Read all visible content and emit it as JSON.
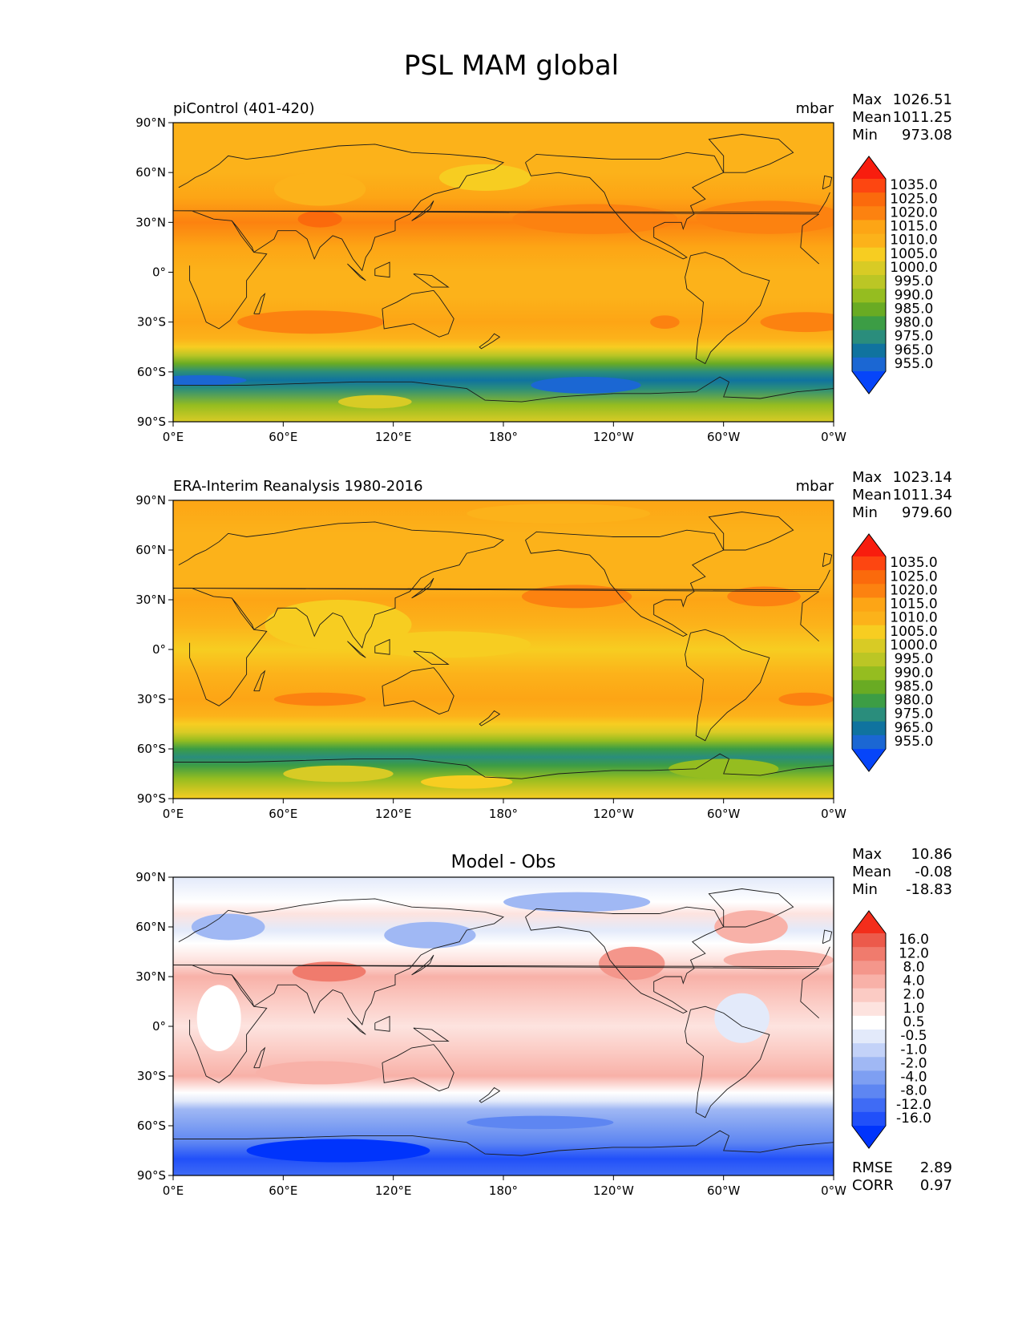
{
  "figure": {
    "title": "PSL MAM global"
  },
  "colors": {
    "abs": [
      "#0645f9",
      "#1b67d3",
      "#10739f",
      "#2a8d7c",
      "#3c9d45",
      "#69ab23",
      "#95bd20",
      "#bbc625",
      "#d8cb25",
      "#f7cd21",
      "#fcb21a",
      "#fda515",
      "#fc8210",
      "#fb6a0c",
      "#fd4611",
      "#f81d0e"
    ],
    "diff": [
      "#0034fc",
      "#2150f9",
      "#3f6bf5",
      "#5e86f2",
      "#7e9ff2",
      "#a0b8f4",
      "#c3d2f8",
      "#e3eafa",
      "#ffffff",
      "#fde3df",
      "#fbcbc4",
      "#f8b1a8",
      "#f4968b",
      "#f07b6d",
      "#ec5a4b",
      "#f32d1b"
    ],
    "frame": "#000000",
    "coast": "#1a1a1a"
  },
  "ticks": {
    "x_labels": [
      "0°E",
      "60°E",
      "120°E",
      "180°",
      "120°W",
      "60°W",
      "0°W"
    ],
    "y_labels": [
      "90°N",
      "60°N",
      "30°N",
      "0°",
      "30°S",
      "60°S",
      "90°S"
    ]
  },
  "chart_data": [
    {
      "type": "heatmap",
      "kind": "abs",
      "title_left": "piControl (401-420)",
      "title_right": "mbar",
      "stats": [
        {
          "label": "Max",
          "value": "1026.51"
        },
        {
          "label": "Mean",
          "value": "1011.25"
        },
        {
          "label": "Min",
          "value": "973.08"
        }
      ],
      "colorbar": {
        "levels": [
          "1035.0",
          "1025.0",
          "1020.0",
          "1015.0",
          "1010.0",
          "1005.0",
          "1000.0",
          "995.0",
          "990.0",
          "985.0",
          "980.0",
          "975.0",
          "965.0",
          "955.0"
        ]
      },
      "xlim": [
        0,
        360
      ],
      "ylim": [
        -90,
        90
      ],
      "zonal_levels": [
        {
          "lat": 90,
          "level": 10
        },
        {
          "lat": 60,
          "level": 10
        },
        {
          "lat": 45,
          "level": 11
        },
        {
          "lat": 30,
          "level": 12
        },
        {
          "lat": 15,
          "level": 11
        },
        {
          "lat": 0,
          "level": 10
        },
        {
          "lat": -15,
          "level": 10
        },
        {
          "lat": -30,
          "level": 11
        },
        {
          "lat": -40,
          "level": 10
        },
        {
          "lat": -45,
          "level": 9
        },
        {
          "lat": -50,
          "level": 7
        },
        {
          "lat": -55,
          "level": 5
        },
        {
          "lat": -60,
          "level": 3
        },
        {
          "lat": -65,
          "level": 2
        },
        {
          "lat": -70,
          "level": 3
        },
        {
          "lat": -80,
          "level": 6
        },
        {
          "lat": -90,
          "level": 8
        }
      ],
      "regions": [
        {
          "lon": 230,
          "lat": 32,
          "rx": 45,
          "ry": 9,
          "level": 12
        },
        {
          "lon": 325,
          "lat": 33,
          "rx": 40,
          "ry": 10,
          "level": 12
        },
        {
          "lon": 75,
          "lat": -30,
          "rx": 40,
          "ry": 7,
          "level": 12
        },
        {
          "lon": 345,
          "lat": -30,
          "rx": 25,
          "ry": 6,
          "level": 12
        },
        {
          "lon": 268,
          "lat": -30,
          "rx": 8,
          "ry": 4,
          "level": 12
        },
        {
          "lon": 225,
          "lat": -68,
          "rx": 30,
          "ry": 5,
          "level": 1
        },
        {
          "lon": 15,
          "lat": -65,
          "rx": 25,
          "ry": 3,
          "level": 1
        },
        {
          "lon": 110,
          "lat": -78,
          "rx": 20,
          "ry": 4,
          "level": 8
        },
        {
          "lon": 80,
          "lat": 32,
          "rx": 12,
          "ry": 5,
          "level": 13
        },
        {
          "lon": 80,
          "lat": 50,
          "rx": 25,
          "ry": 10,
          "level": 10
        },
        {
          "lon": 170,
          "lat": 57,
          "rx": 25,
          "ry": 8,
          "level": 9
        }
      ]
    },
    {
      "type": "heatmap",
      "kind": "abs",
      "title_left": "ERA-Interim Reanalysis 1980-2016",
      "title_right": "mbar",
      "stats": [
        {
          "label": "Max",
          "value": "1023.14"
        },
        {
          "label": "Mean",
          "value": "1011.34"
        },
        {
          "label": "Min",
          "value": "979.60"
        }
      ],
      "colorbar": {
        "levels": [
          "1035.0",
          "1025.0",
          "1020.0",
          "1015.0",
          "1010.0",
          "1005.0",
          "1000.0",
          "995.0",
          "990.0",
          "985.0",
          "980.0",
          "975.0",
          "965.0",
          "955.0"
        ]
      },
      "xlim": [
        0,
        360
      ],
      "ylim": [
        -90,
        90
      ],
      "zonal_levels": [
        {
          "lat": 90,
          "level": 11
        },
        {
          "lat": 70,
          "level": 10
        },
        {
          "lat": 55,
          "level": 10
        },
        {
          "lat": 40,
          "level": 10
        },
        {
          "lat": 30,
          "level": 11
        },
        {
          "lat": 15,
          "level": 10
        },
        {
          "lat": 0,
          "level": 9
        },
        {
          "lat": -15,
          "level": 10
        },
        {
          "lat": -30,
          "level": 11
        },
        {
          "lat": -40,
          "level": 10
        },
        {
          "lat": -45,
          "level": 9
        },
        {
          "lat": -50,
          "level": 8
        },
        {
          "lat": -55,
          "level": 6
        },
        {
          "lat": -60,
          "level": 4
        },
        {
          "lat": -65,
          "level": 3
        },
        {
          "lat": -70,
          "level": 4
        },
        {
          "lat": -78,
          "level": 6
        },
        {
          "lat": -90,
          "level": 9
        }
      ],
      "regions": [
        {
          "lon": 220,
          "lat": 32,
          "rx": 30,
          "ry": 7,
          "level": 12
        },
        {
          "lon": 322,
          "lat": 32,
          "rx": 20,
          "ry": 6,
          "level": 12
        },
        {
          "lon": 80,
          "lat": -30,
          "rx": 25,
          "ry": 4,
          "level": 12
        },
        {
          "lon": 345,
          "lat": -30,
          "rx": 15,
          "ry": 4,
          "level": 12
        },
        {
          "lon": 210,
          "lat": 82,
          "rx": 50,
          "ry": 6,
          "level": 10
        },
        {
          "lon": 90,
          "lat": 15,
          "rx": 40,
          "ry": 15,
          "level": 9
        },
        {
          "lon": 150,
          "lat": 3,
          "rx": 45,
          "ry": 8,
          "level": 9
        },
        {
          "lon": 90,
          "lat": -75,
          "rx": 30,
          "ry": 5,
          "level": 8
        },
        {
          "lon": 160,
          "lat": -80,
          "rx": 25,
          "ry": 4,
          "level": 9
        },
        {
          "lon": 300,
          "lat": -72,
          "rx": 30,
          "ry": 6,
          "level": 6
        }
      ]
    },
    {
      "type": "heatmap",
      "kind": "diff",
      "title_center": "Model - Obs",
      "stats": [
        {
          "label": "Max",
          "value": "10.86"
        },
        {
          "label": "Mean",
          "value": "-0.08"
        },
        {
          "label": "Min",
          "value": "-18.83"
        }
      ],
      "colorbar": {
        "levels": [
          "16.0",
          "12.0",
          "8.0",
          "4.0",
          "2.0",
          "1.0",
          "0.5",
          "-0.5",
          "-1.0",
          "-2.0",
          "-4.0",
          "-8.0",
          "-12.0",
          "-16.0"
        ]
      },
      "extra_stats": [
        {
          "label": "RMSE",
          "value": "2.89"
        },
        {
          "label": "CORR",
          "value": "0.97"
        }
      ],
      "xlim": [
        0,
        360
      ],
      "ylim": [
        -90,
        90
      ],
      "zonal_levels": [
        {
          "lat": 90,
          "level": 7
        },
        {
          "lat": 75,
          "level": 8
        },
        {
          "lat": 68,
          "level": 9
        },
        {
          "lat": 58,
          "level": 7
        },
        {
          "lat": 50,
          "level": 8
        },
        {
          "lat": 40,
          "level": 9
        },
        {
          "lat": 30,
          "level": 11
        },
        {
          "lat": 15,
          "level": 10
        },
        {
          "lat": 0,
          "level": 9
        },
        {
          "lat": -15,
          "level": 10
        },
        {
          "lat": -30,
          "level": 11
        },
        {
          "lat": -40,
          "level": 8
        },
        {
          "lat": -45,
          "level": 7
        },
        {
          "lat": -50,
          "level": 5
        },
        {
          "lat": -60,
          "level": 4
        },
        {
          "lat": -70,
          "level": 3
        },
        {
          "lat": -80,
          "level": 1
        },
        {
          "lat": -90,
          "level": 2
        }
      ],
      "regions": [
        {
          "lon": 85,
          "lat": 33,
          "rx": 20,
          "ry": 6,
          "level": 13
        },
        {
          "lon": 250,
          "lat": 38,
          "rx": 18,
          "ry": 10,
          "level": 12
        },
        {
          "lon": 315,
          "lat": 60,
          "rx": 20,
          "ry": 10,
          "level": 11
        },
        {
          "lon": 220,
          "lat": 75,
          "rx": 40,
          "ry": 6,
          "level": 5
        },
        {
          "lon": 140,
          "lat": 55,
          "rx": 25,
          "ry": 8,
          "level": 5
        },
        {
          "lon": 30,
          "lat": 60,
          "rx": 20,
          "ry": 8,
          "level": 5
        },
        {
          "lon": 330,
          "lat": 40,
          "rx": 30,
          "ry": 6,
          "level": 11
        },
        {
          "lon": 310,
          "lat": 5,
          "rx": 15,
          "ry": 15,
          "level": 7
        },
        {
          "lon": 90,
          "lat": -75,
          "rx": 50,
          "ry": 7,
          "level": 0
        },
        {
          "lon": 200,
          "lat": -58,
          "rx": 40,
          "ry": 4,
          "level": 3
        },
        {
          "lon": 80,
          "lat": -28,
          "rx": 35,
          "ry": 7,
          "level": 11
        },
        {
          "lon": 25,
          "lat": 5,
          "rx": 12,
          "ry": 20,
          "level": 8
        }
      ]
    }
  ]
}
